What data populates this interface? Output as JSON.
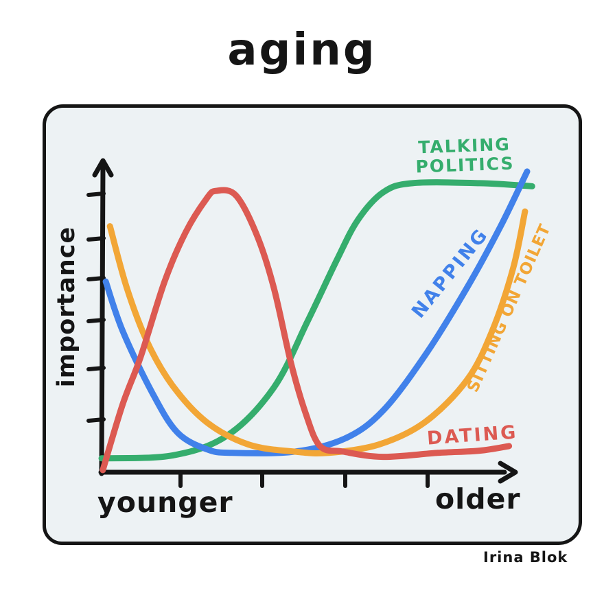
{
  "title": "aging",
  "signature": "Irina Blok",
  "style": {
    "ink": "#151515",
    "panel_bg": "#edf2f4",
    "page_bg": "#ffffff"
  },
  "chart_data": {
    "type": "line",
    "title": "aging",
    "ylabel": "importance",
    "xlabel_left": "younger",
    "xlabel_right": "older",
    "x_axis": {
      "range": [
        0,
        10
      ],
      "tick_count": 4,
      "tick_labels": []
    },
    "y_axis": {
      "range": [
        0,
        10
      ],
      "tick_count": 6,
      "tick_labels": []
    },
    "grid": false,
    "legend_position": "labels-on-curves",
    "series": [
      {
        "name": "TALKING POLITICS",
        "label": "TALKING\nPOLITICS",
        "color": "#35ad6d",
        "points": [
          [
            0,
            0.45
          ],
          [
            1.7,
            0.55
          ],
          [
            3,
            1.2
          ],
          [
            4.1,
            2.75
          ],
          [
            4.9,
            4.9
          ],
          [
            5.6,
            6.9
          ],
          [
            6.1,
            8.2
          ],
          [
            6.7,
            9.1
          ],
          [
            7.4,
            9.4
          ],
          [
            9,
            9.4
          ],
          [
            10.25,
            9.3
          ]
        ]
      },
      {
        "name": "NAPPING",
        "label": "NAPPING",
        "color": "#4181ea",
        "points": [
          [
            0.1,
            6.2
          ],
          [
            0.5,
            4.6
          ],
          [
            1.2,
            2.6
          ],
          [
            1.8,
            1.3
          ],
          [
            2.5,
            0.75
          ],
          [
            3.1,
            0.63
          ],
          [
            4.6,
            0.67
          ],
          [
            5.8,
            1.1
          ],
          [
            6.7,
            2.0
          ],
          [
            7.7,
            3.8
          ],
          [
            8.7,
            6.0
          ],
          [
            9.5,
            8.0
          ],
          [
            10.13,
            9.78
          ]
        ]
      },
      {
        "name": "SITTING ON TOILET",
        "label": "SITTING ON TOILET",
        "color": "#f2a636",
        "points": [
          [
            0.2,
            8.0
          ],
          [
            0.6,
            6.0
          ],
          [
            1.1,
            4.2
          ],
          [
            1.7,
            2.8
          ],
          [
            2.5,
            1.63
          ],
          [
            3.5,
            0.9
          ],
          [
            4.6,
            0.67
          ],
          [
            5.4,
            0.63
          ],
          [
            6.6,
            0.9
          ],
          [
            7.7,
            1.63
          ],
          [
            8.7,
            3.0
          ],
          [
            9.3,
            4.6
          ],
          [
            9.8,
            6.65
          ],
          [
            10.08,
            8.48
          ]
        ]
      },
      {
        "name": "DATING",
        "label": "DATING",
        "color": "#dc5a52",
        "points": [
          [
            0.03,
            0.07
          ],
          [
            0.5,
            2.2
          ],
          [
            0.93,
            3.75
          ],
          [
            1.5,
            6.2
          ],
          [
            2.0,
            7.8
          ],
          [
            2.5,
            8.9
          ],
          [
            2.73,
            9.15
          ],
          [
            3.2,
            9.0
          ],
          [
            3.7,
            7.7
          ],
          [
            4.1,
            6.0
          ],
          [
            4.5,
            3.6
          ],
          [
            4.85,
            1.95
          ],
          [
            5.2,
            0.85
          ],
          [
            5.75,
            0.67
          ],
          [
            6.7,
            0.5
          ],
          [
            8.0,
            0.63
          ],
          [
            9.0,
            0.7
          ],
          [
            9.7,
            0.85
          ]
        ]
      }
    ]
  }
}
